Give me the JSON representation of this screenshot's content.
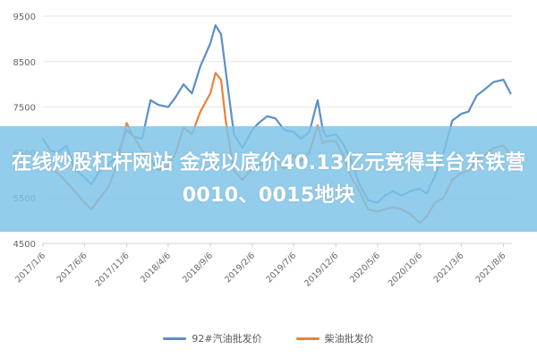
{
  "chart_data": {
    "type": "line",
    "ylim": [
      4500,
      9500
    ],
    "y_ticks": [
      "9500",
      "8500",
      "7500",
      "6500",
      "5500",
      "4500"
    ],
    "x_ticks": [
      "2017/1/6",
      "2017/6/6",
      "2017/11/6",
      "2018/4/6",
      "2018/9/6",
      "2019/2/6",
      "2019/7/6",
      "2019/12/6",
      "2020/5/6",
      "2020/10/6",
      "2021/3/6",
      "2021/8/6"
    ],
    "grid": true,
    "legend_position": "bottom",
    "series": [
      {
        "name": "92#汽油批发价",
        "color": "#5b8fc7",
        "points": [
          [
            "2017/1/6",
            6800
          ],
          [
            "2017/2/1",
            6550
          ],
          [
            "2017/3/1",
            6500
          ],
          [
            "2017/4/1",
            6650
          ],
          [
            "2017/5/1",
            6150
          ],
          [
            "2017/6/6",
            5950
          ],
          [
            "2017/7/1",
            5800
          ],
          [
            "2017/8/1",
            6100
          ],
          [
            "2017/9/1",
            6250
          ],
          [
            "2017/10/1",
            6400
          ],
          [
            "2017/11/6",
            7000
          ],
          [
            "2017/12/1",
            6850
          ],
          [
            "2018/1/1",
            6800
          ],
          [
            "2018/2/1",
            7650
          ],
          [
            "2018/3/1",
            7550
          ],
          [
            "2018/4/6",
            7500
          ],
          [
            "2018/5/1",
            7700
          ],
          [
            "2018/6/1",
            8000
          ],
          [
            "2018/7/1",
            7800
          ],
          [
            "2018/8/1",
            8400
          ],
          [
            "2018/9/6",
            8900
          ],
          [
            "2018/9/25",
            9300
          ],
          [
            "2018/10/15",
            9100
          ],
          [
            "2018/11/1",
            8300
          ],
          [
            "2018/12/1",
            6900
          ],
          [
            "2019/1/1",
            6600
          ],
          [
            "2019/2/6",
            7000
          ],
          [
            "2019/3/1",
            7150
          ],
          [
            "2019/4/1",
            7300
          ],
          [
            "2019/5/1",
            7250
          ],
          [
            "2019/6/1",
            7000
          ],
          [
            "2019/7/6",
            6950
          ],
          [
            "2019/8/1",
            6800
          ],
          [
            "2019/9/1",
            6950
          ],
          [
            "2019/10/1",
            7650
          ],
          [
            "2019/10/20",
            7000
          ],
          [
            "2019/11/1",
            6850
          ],
          [
            "2019/12/6",
            6900
          ],
          [
            "2020/1/1",
            6700
          ],
          [
            "2020/2/1",
            6300
          ],
          [
            "2020/3/1",
            5800
          ],
          [
            "2020/4/1",
            5450
          ],
          [
            "2020/5/6",
            5400
          ],
          [
            "2020/6/1",
            5550
          ],
          [
            "2020/7/1",
            5650
          ],
          [
            "2020/8/1",
            5550
          ],
          [
            "2020/9/1",
            5650
          ],
          [
            "2020/10/6",
            5700
          ],
          [
            "2020/11/1",
            5600
          ],
          [
            "2020/12/1",
            6000
          ],
          [
            "2021/1/1",
            6500
          ],
          [
            "2021/2/1",
            7200
          ],
          [
            "2021/3/6",
            7350
          ],
          [
            "2021/4/1",
            7400
          ],
          [
            "2021/5/1",
            7750
          ],
          [
            "2021/6/1",
            7900
          ],
          [
            "2021/7/1",
            8050
          ],
          [
            "2021/8/6",
            8100
          ],
          [
            "2021/9/1",
            7800
          ]
        ]
      },
      {
        "name": "柴油批发价",
        "color": "#e8833a",
        "points": [
          [
            "2017/1/6",
            6300
          ],
          [
            "2017/2/1",
            6150
          ],
          [
            "2017/3/1",
            6050
          ],
          [
            "2017/4/1",
            5850
          ],
          [
            "2017/5/1",
            5650
          ],
          [
            "2017/6/6",
            5400
          ],
          [
            "2017/7/1",
            5250
          ],
          [
            "2017/8/1",
            5500
          ],
          [
            "2017/9/1",
            5750
          ],
          [
            "2017/10/1",
            6200
          ],
          [
            "2017/11/6",
            7150
          ],
          [
            "2017/12/1",
            6850
          ],
          [
            "2018/1/1",
            6550
          ],
          [
            "2018/2/1",
            6350
          ],
          [
            "2018/3/1",
            6100
          ],
          [
            "2018/4/6",
            6200
          ],
          [
            "2018/5/1",
            6450
          ],
          [
            "2018/6/1",
            7050
          ],
          [
            "2018/7/1",
            6900
          ],
          [
            "2018/8/1",
            7400
          ],
          [
            "2018/9/6",
            7800
          ],
          [
            "2018/9/25",
            8250
          ],
          [
            "2018/10/15",
            8100
          ],
          [
            "2018/11/1",
            7200
          ],
          [
            "2018/12/1",
            6100
          ],
          [
            "2019/1/1",
            5900
          ],
          [
            "2019/2/6",
            6150
          ],
          [
            "2019/3/1",
            6200
          ],
          [
            "2019/4/1",
            6400
          ],
          [
            "2019/5/1",
            6350
          ],
          [
            "2019/6/1",
            6150
          ],
          [
            "2019/7/6",
            6450
          ],
          [
            "2019/8/1",
            6300
          ],
          [
            "2019/9/1",
            6500
          ],
          [
            "2019/10/1",
            7100
          ],
          [
            "2019/10/20",
            6700
          ],
          [
            "2019/11/1",
            6750
          ],
          [
            "2019/12/6",
            6750
          ],
          [
            "2020/1/1",
            6450
          ],
          [
            "2020/2/1",
            5950
          ],
          [
            "2020/3/1",
            5650
          ],
          [
            "2020/4/1",
            5250
          ],
          [
            "2020/5/6",
            5200
          ],
          [
            "2020/6/1",
            5250
          ],
          [
            "2020/7/1",
            5300
          ],
          [
            "2020/8/1",
            5250
          ],
          [
            "2020/9/1",
            5150
          ],
          [
            "2020/10/6",
            4950
          ],
          [
            "2020/11/1",
            5100
          ],
          [
            "2020/12/1",
            5400
          ],
          [
            "2021/1/1",
            5500
          ],
          [
            "2021/2/1",
            5900
          ],
          [
            "2021/3/6",
            6050
          ],
          [
            "2021/4/1",
            6100
          ],
          [
            "2021/5/1",
            6350
          ],
          [
            "2021/6/1",
            6450
          ],
          [
            "2021/7/1",
            6600
          ],
          [
            "2021/8/6",
            6650
          ],
          [
            "2021/9/1",
            6450
          ]
        ]
      }
    ]
  },
  "overlay": {
    "headline": "在线炒股杠杆网站 金茂以底价40.13亿元竞得丰台东铁营0010、0015地块",
    "background_color": "#7ec4e8"
  }
}
